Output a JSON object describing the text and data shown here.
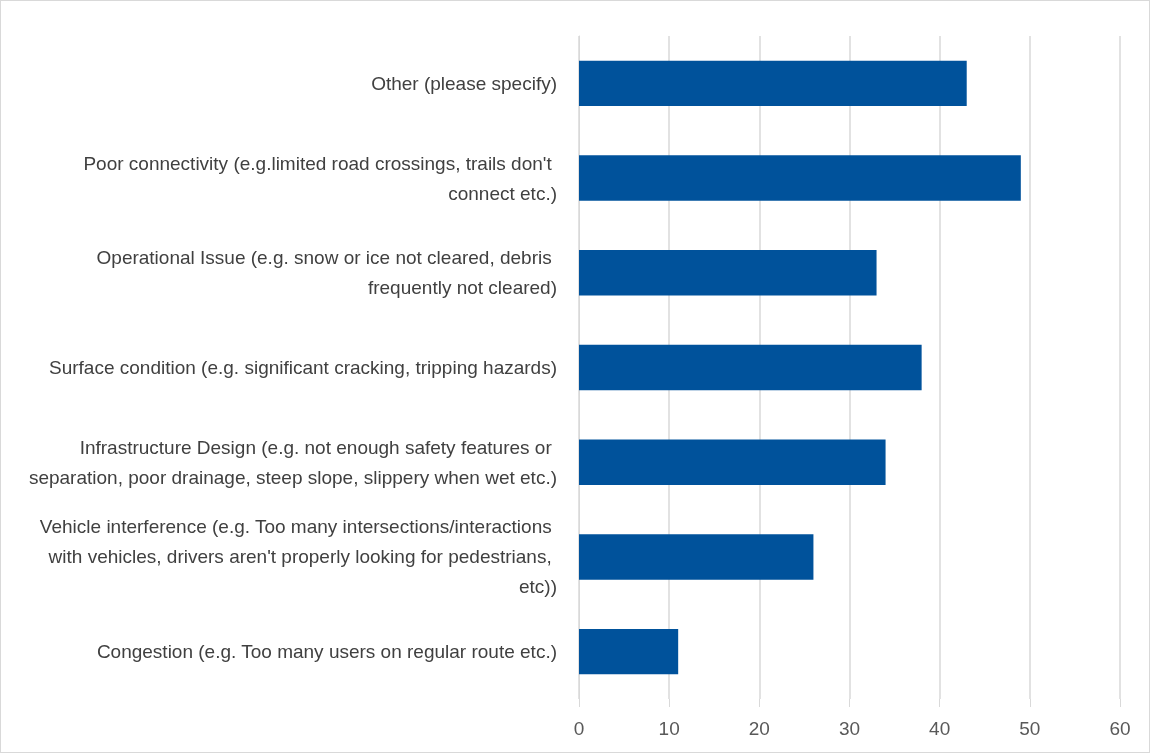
{
  "chart_data": {
    "type": "bar",
    "orientation": "horizontal",
    "categories": [
      "Other (please specify)",
      "Poor connectivity (e.g.limited road crossings, trails don't connect etc.)",
      "Operational Issue (e.g. snow or ice not cleared, debris frequently not cleared)",
      "Surface condition (e.g. significant cracking, tripping hazards)",
      "Infrastructure Design (e.g. not enough safety features or separation, poor drainage, steep slope, slippery when wet etc.)",
      "Vehicle interference (e.g. Too many intersections/interactions with vehicles, drivers aren't properly looking for pedestrians, etc))",
      "Congestion (e.g. Too many users on regular route etc.)"
    ],
    "values": [
      43,
      49,
      33,
      38,
      34,
      26,
      11
    ],
    "color": "#00529b",
    "xlim": [
      0,
      60
    ],
    "xticks": [
      0,
      10,
      20,
      30,
      40,
      50,
      60
    ],
    "grid": "x"
  }
}
